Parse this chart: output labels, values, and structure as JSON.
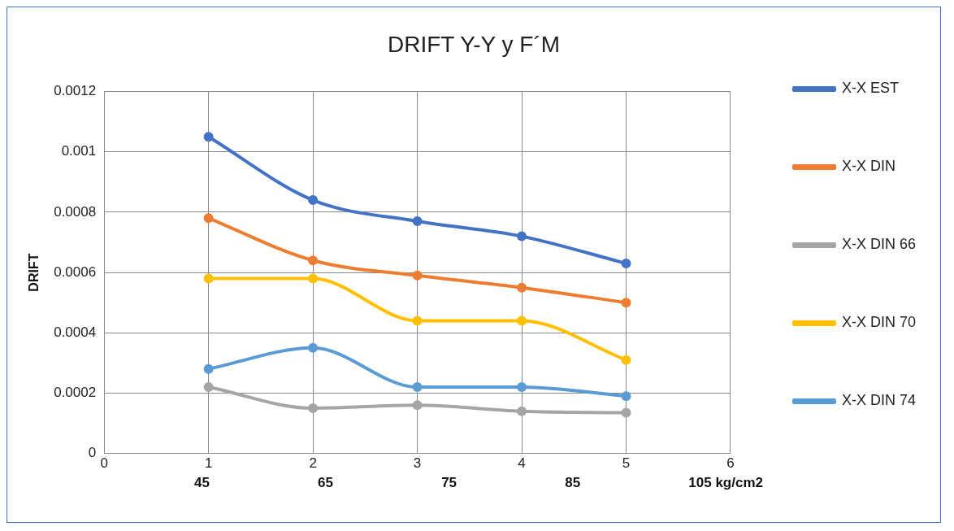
{
  "chart_data": {
    "type": "line",
    "title": "DRIFT Y-Y y F´M",
    "ylabel": "DRIFT",
    "x": [
      1,
      2,
      3,
      4,
      5
    ],
    "series": [
      {
        "name": "X-X EST",
        "color": "#4472c4",
        "values": [
          0.00105,
          0.00084,
          0.00077,
          0.00072,
          0.00063
        ]
      },
      {
        "name": "X-X DIN",
        "color": "#ed7d31",
        "values": [
          0.00078,
          0.00064,
          0.00059,
          0.00055,
          0.0005
        ]
      },
      {
        "name": "X-X DIN 66",
        "color": "#a5a5a5",
        "values": [
          0.00022,
          0.00015,
          0.00016,
          0.00014,
          0.000135
        ]
      },
      {
        "name": "X-X DIN 70",
        "color": "#ffc000",
        "values": [
          0.00058,
          0.00058,
          0.00044,
          0.00044,
          0.00031
        ]
      },
      {
        "name": "X-X DIN 74",
        "color": "#5b9bd5",
        "values": [
          0.00028,
          0.00035,
          0.00022,
          0.00022,
          0.00019
        ]
      }
    ],
    "xlim": [
      0,
      6
    ],
    "xticks": [
      0,
      1,
      2,
      3,
      4,
      5,
      6
    ],
    "ylim": [
      0,
      0.0012
    ],
    "yticks": [
      0,
      0.0002,
      0.0004,
      0.0006,
      0.0008,
      0.001,
      0.0012
    ],
    "grid": true,
    "legend": "right",
    "marker": "circle",
    "line_style": "solid",
    "annotations": [
      "45",
      "65",
      "75",
      "85",
      "105 kg/cm2"
    ]
  }
}
